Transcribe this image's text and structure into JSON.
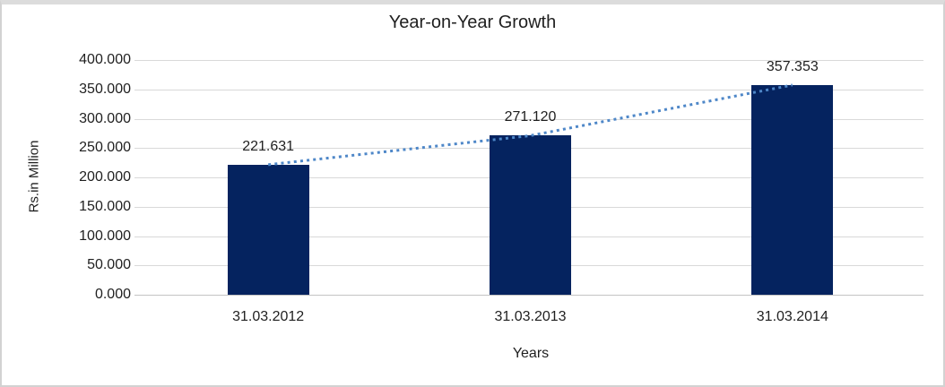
{
  "chart_data": {
    "type": "bar",
    "title": "Year-on-Year Growth",
    "categories": [
      "31.03.2012",
      "31.03.2013",
      "31.03.2014"
    ],
    "values": [
      221.631,
      271.12,
      357.353
    ],
    "data_labels": [
      "221.631",
      "271.120",
      "357.353"
    ],
    "xlabel": "Years",
    "ylabel": "Rs.in Million",
    "ylim": [
      0,
      400
    ],
    "y_tick_step": 50,
    "y_tick_labels": [
      "0.000",
      "50.000",
      "100.000",
      "150.000",
      "200.000",
      "250.000",
      "300.000",
      "350.000",
      "400.000"
    ],
    "grid": true,
    "legend": "none",
    "trendline": {
      "style": "dotted",
      "color": "#4e87c8"
    },
    "colors": {
      "bar": "#05235f",
      "gridline": "#d9d9d9",
      "axis_line": "#c3c3c3",
      "text": "#1f1f1f",
      "frame_border": "#d2d2d2"
    }
  }
}
